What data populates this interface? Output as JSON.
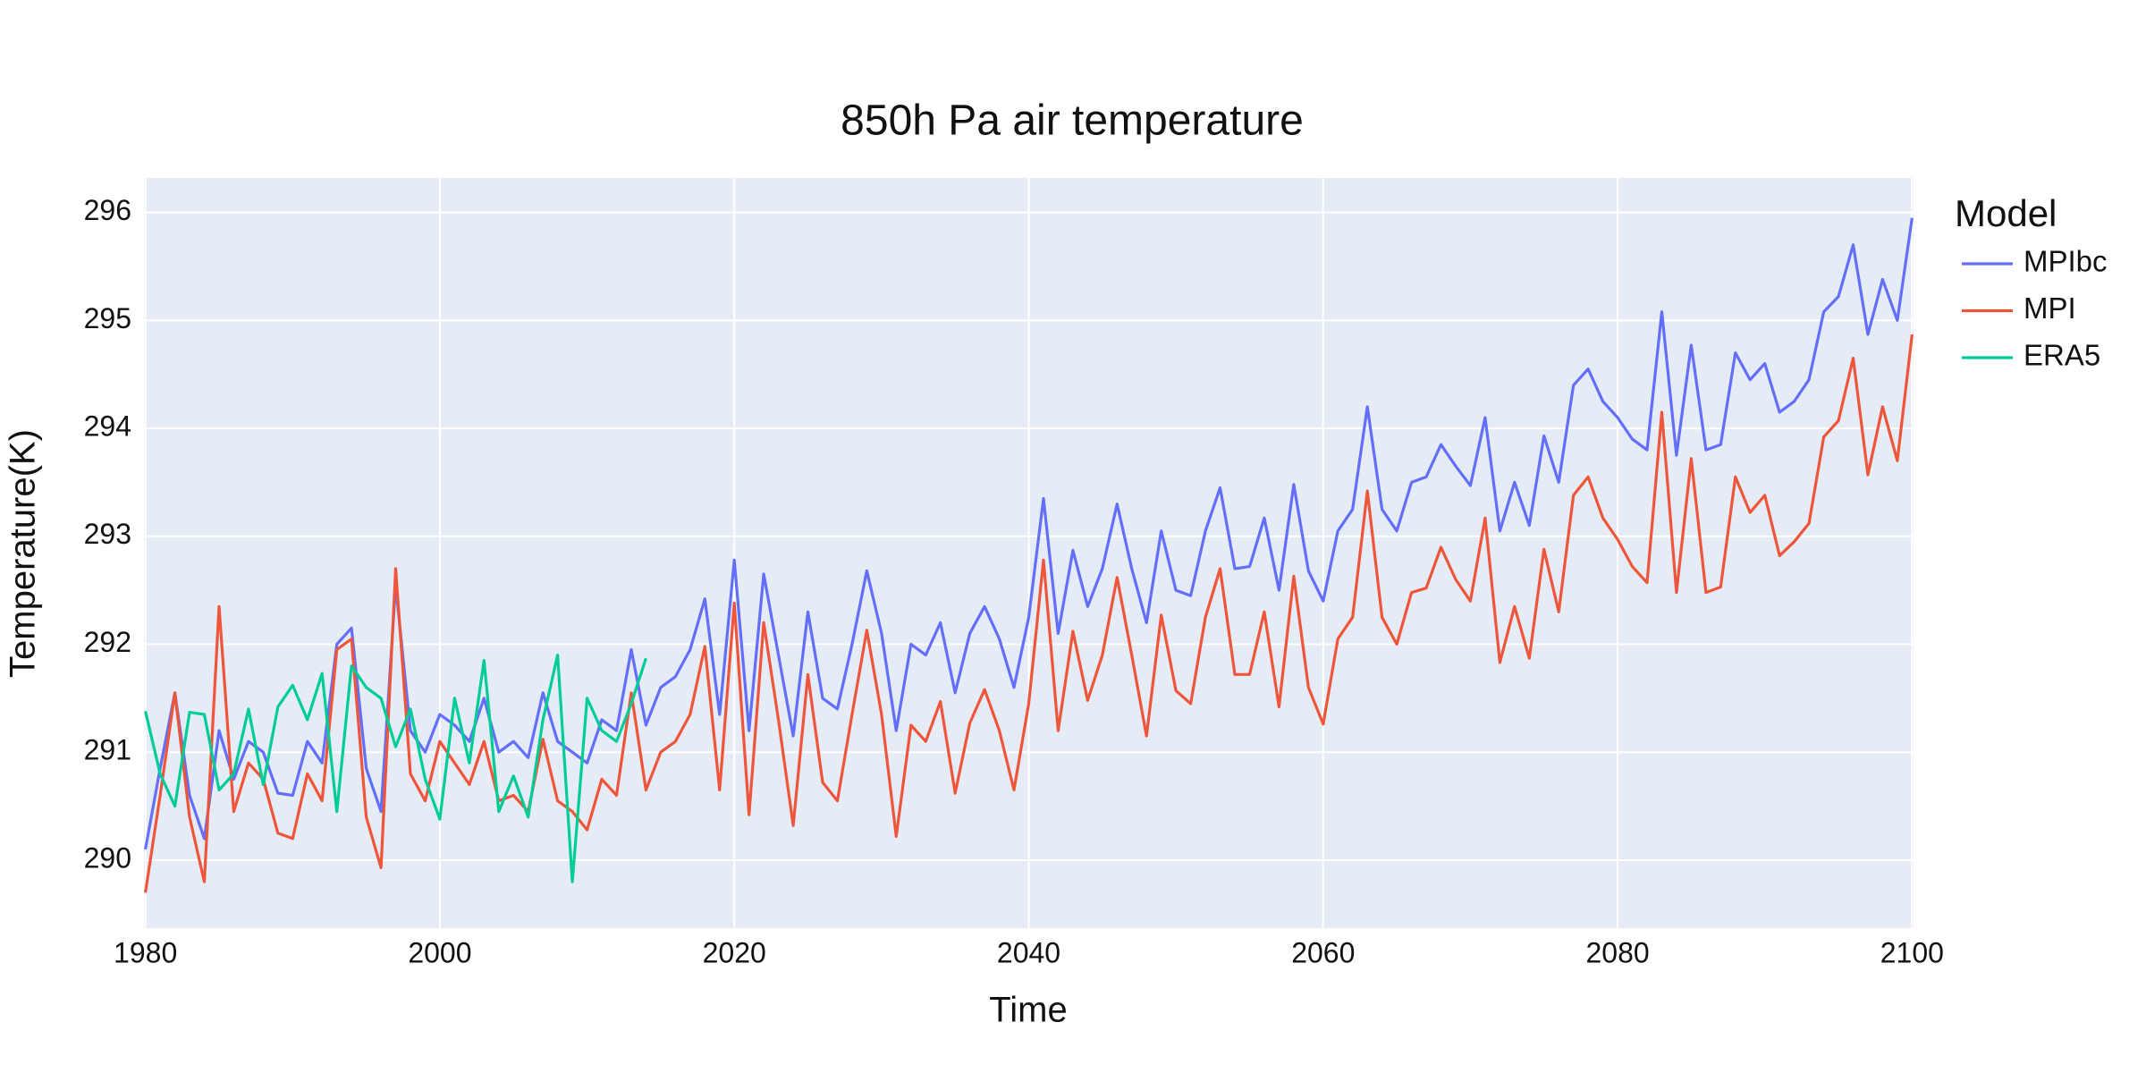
{
  "chart_data": {
    "type": "line",
    "title": "850h Pa air temperature",
    "x_label": "Time",
    "y_label": "Temperature(K)",
    "legend_title": "Model",
    "legend": "right",
    "grid": true,
    "x": [
      1980,
      1981,
      1982,
      1983,
      1984,
      1985,
      1986,
      1987,
      1988,
      1989,
      1990,
      1991,
      1992,
      1993,
      1994,
      1995,
      1996,
      1997,
      1998,
      1999,
      2000,
      2001,
      2002,
      2003,
      2004,
      2005,
      2006,
      2007,
      2008,
      2009,
      2010,
      2011,
      2012,
      2013,
      2014,
      2015,
      2016,
      2017,
      2018,
      2019,
      2020,
      2021,
      2022,
      2023,
      2024,
      2025,
      2026,
      2027,
      2028,
      2029,
      2030,
      2031,
      2032,
      2033,
      2034,
      2035,
      2036,
      2037,
      2038,
      2039,
      2040,
      2041,
      2042,
      2043,
      2044,
      2045,
      2046,
      2047,
      2048,
      2049,
      2050,
      2051,
      2052,
      2053,
      2054,
      2055,
      2056,
      2057,
      2058,
      2059,
      2060,
      2061,
      2062,
      2063,
      2064,
      2065,
      2066,
      2067,
      2068,
      2069,
      2070,
      2071,
      2072,
      2073,
      2074,
      2075,
      2076,
      2077,
      2078,
      2079,
      2080,
      2081,
      2082,
      2083,
      2084,
      2085,
      2086,
      2087,
      2088,
      2089,
      2090,
      2091,
      2092,
      2093,
      2094,
      2095,
      2096,
      2097,
      2098,
      2099,
      2100
    ],
    "series": [
      {
        "name": "MPIbc",
        "color": "#636efa",
        "values": [
          290.1,
          290.85,
          291.55,
          290.6,
          290.2,
          291.2,
          290.75,
          291.1,
          291.0,
          290.62,
          290.6,
          291.1,
          290.9,
          292.0,
          292.15,
          290.85,
          290.45,
          292.55,
          291.2,
          291.0,
          291.35,
          291.25,
          291.1,
          291.5,
          291.0,
          291.1,
          290.95,
          291.55,
          291.1,
          291.0,
          290.9,
          291.3,
          291.2,
          291.95,
          291.25,
          291.6,
          291.7,
          291.95,
          292.42,
          291.35,
          292.78,
          291.2,
          292.65,
          291.9,
          291.15,
          292.3,
          291.5,
          291.4,
          292.0,
          292.68,
          292.1,
          291.2,
          292.0,
          291.9,
          292.2,
          291.55,
          292.1,
          292.35,
          292.05,
          291.6,
          292.25,
          293.35,
          292.1,
          292.87,
          292.35,
          292.7,
          293.3,
          292.7,
          292.2,
          293.05,
          292.5,
          292.45,
          293.05,
          293.45,
          292.7,
          292.72,
          293.17,
          292.5,
          293.48,
          292.68,
          292.4,
          293.05,
          293.25,
          294.2,
          293.25,
          293.05,
          293.5,
          293.55,
          293.85,
          293.65,
          293.47,
          294.1,
          293.05,
          293.5,
          293.1,
          293.93,
          293.5,
          294.4,
          294.55,
          294.25,
          294.1,
          293.9,
          293.8,
          295.08,
          293.75,
          294.77,
          293.8,
          293.85,
          294.7,
          294.45,
          294.6,
          294.15,
          294.25,
          294.45,
          295.08,
          295.22,
          295.7,
          294.87,
          295.38,
          295.0,
          295.95
        ]
      },
      {
        "name": "MPI",
        "color": "#ef553b",
        "values": [
          289.7,
          290.6,
          291.55,
          290.4,
          289.8,
          292.35,
          290.45,
          290.9,
          290.75,
          290.25,
          290.2,
          290.8,
          290.55,
          291.95,
          292.05,
          290.4,
          289.93,
          292.7,
          290.8,
          290.55,
          291.1,
          290.9,
          290.7,
          291.1,
          290.55,
          290.6,
          290.45,
          291.12,
          290.55,
          290.45,
          290.28,
          290.75,
          290.6,
          291.55,
          290.65,
          291.0,
          291.1,
          291.35,
          291.98,
          290.65,
          292.38,
          290.42,
          292.2,
          291.3,
          290.32,
          291.72,
          290.72,
          290.55,
          291.35,
          292.13,
          291.35,
          290.22,
          291.25,
          291.1,
          291.47,
          290.62,
          291.27,
          291.58,
          291.2,
          290.65,
          291.45,
          292.78,
          291.2,
          292.12,
          291.48,
          291.9,
          292.62,
          291.9,
          291.15,
          292.27,
          291.57,
          291.45,
          292.25,
          292.7,
          291.72,
          291.72,
          292.3,
          291.42,
          292.63,
          291.6,
          291.26,
          292.05,
          292.25,
          293.42,
          292.25,
          292.0,
          292.48,
          292.52,
          292.9,
          292.6,
          292.4,
          293.17,
          291.83,
          292.35,
          291.87,
          292.88,
          292.3,
          293.38,
          293.55,
          293.17,
          292.97,
          292.72,
          292.57,
          294.15,
          292.48,
          293.72,
          292.48,
          292.53,
          293.55,
          293.22,
          293.38,
          292.82,
          292.95,
          293.12,
          293.92,
          294.07,
          294.65,
          293.57,
          294.2,
          293.7,
          294.87
        ]
      },
      {
        "name": "ERA5",
        "color": "#00cc96",
        "values": [
          291.38,
          290.8,
          290.5,
          291.37,
          291.35,
          290.65,
          290.8,
          291.4,
          290.7,
          291.42,
          291.62,
          291.3,
          291.73,
          290.45,
          291.8,
          291.6,
          291.5,
          291.05,
          291.4,
          290.75,
          290.38,
          291.5,
          290.9,
          291.85,
          290.45,
          290.78,
          290.4,
          291.3,
          291.9,
          289.8,
          291.5,
          291.2,
          291.1,
          291.45,
          291.87,
          null,
          null,
          null,
          null,
          null,
          null,
          null,
          null,
          null,
          null,
          null,
          null,
          null,
          null,
          null,
          null,
          null,
          null,
          null,
          null,
          null,
          null,
          null,
          null,
          null,
          null,
          null,
          null,
          null,
          null,
          null,
          null,
          null,
          null,
          null,
          null,
          null,
          null,
          null,
          null,
          null,
          null,
          null,
          null,
          null,
          null,
          null,
          null,
          null,
          null,
          null,
          null,
          null,
          null,
          null,
          null,
          null,
          null,
          null,
          null,
          null,
          null,
          null,
          null,
          null,
          null,
          null,
          null,
          null,
          null,
          null,
          null,
          null,
          null,
          null,
          null,
          null,
          null,
          null,
          null,
          null,
          null,
          null,
          null,
          null,
          null
        ]
      }
    ],
    "xlim": [
      1979.9,
      2100.1
    ],
    "xticks": [
      1980,
      2000,
      2020,
      2040,
      2060,
      2080,
      2100
    ],
    "ylim": [
      289.37,
      296.32
    ],
    "yticks": [
      290,
      291,
      292,
      293,
      294,
      295,
      296
    ]
  }
}
